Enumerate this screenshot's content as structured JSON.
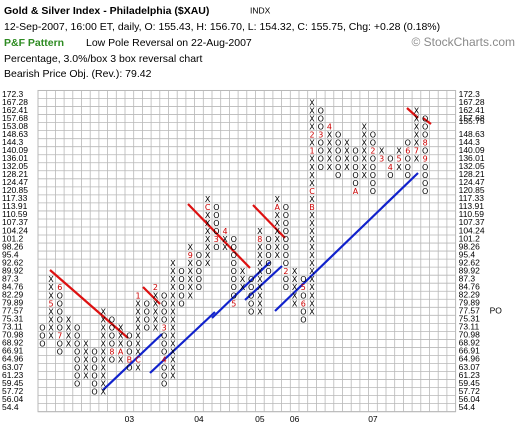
{
  "chart_data": {
    "type": "point-and-figure",
    "title": "Gold & Silver Index - Philadelphia ($XAU)",
    "exchange": "INDX",
    "quote_line": "12-Sep-2007, 16:00 ET, daily, O: 155.43, H: 156.70, L: 154.32, C: 155.75, Chg: +0.28 (0.18%)",
    "pattern_label": "P&F Pattern",
    "pattern_text": "Low Pole Reversal on 22-Aug-2007",
    "method_text": "Percentage, 3.0%/box 3 box reversal chart",
    "objective_text": "Bearish Price Obj. (Rev.): 79.42",
    "watermark": "© StockCharts.com",
    "last_price": 155.75,
    "price_objective": {
      "value": 77.57,
      "label": "PO"
    },
    "x_symbol": "X",
    "o_symbol": "O",
    "yticks": [
      172.3,
      167.28,
      162.41,
      157.68,
      153.08,
      148.63,
      144.3,
      140.09,
      136.01,
      132.05,
      128.21,
      124.47,
      120.85,
      117.33,
      113.91,
      110.59,
      107.37,
      104.24,
      101.2,
      98.26,
      95.4,
      92.62,
      89.92,
      87.3,
      84.76,
      82.29,
      79.89,
      77.57,
      75.31,
      73.11,
      70.98,
      68.92,
      66.91,
      64.96,
      63.07,
      61.23,
      59.45,
      57.72,
      56.04,
      54.4
    ],
    "ylim": [
      54.4,
      172.3
    ],
    "grid": true,
    "colors": {
      "box": "#000000",
      "marker": "#cc0000",
      "grid": "#b8b8b8",
      "highlight": "#cc0000"
    },
    "columns": [
      {
        "kind": "O",
        "high": 73.11,
        "low": 68.92
      },
      {
        "kind": "X",
        "high": 87.3,
        "low": 70.98,
        "markers": [
          {
            "label": "5",
            "price": 79.89
          }
        ]
      },
      {
        "kind": "O",
        "high": 84.76,
        "low": 66.91,
        "markers": [
          {
            "label": "6",
            "price": 84.76
          },
          {
            "label": "7",
            "price": 70.98
          }
        ]
      },
      {
        "kind": "X",
        "high": 75.31,
        "low": 68.92
      },
      {
        "kind": "O",
        "high": 73.11,
        "low": 59.45
      },
      {
        "kind": "X",
        "high": 68.92,
        "low": 61.23
      },
      {
        "kind": "O",
        "high": 66.91,
        "low": 57.72
      },
      {
        "kind": "X",
        "high": 77.57,
        "low": 57.72
      },
      {
        "kind": "O",
        "high": 75.31,
        "low": 64.96,
        "markers": [
          {
            "label": "8",
            "price": 66.91
          }
        ]
      },
      {
        "kind": "X",
        "high": 73.11,
        "low": 64.96,
        "markers": [
          {
            "label": "A",
            "price": 66.91
          }
        ]
      },
      {
        "kind": "O",
        "high": 70.98,
        "low": 63.07,
        "axis_label": "03",
        "markers": [
          {
            "label": "B",
            "price": 64.96
          }
        ]
      },
      {
        "kind": "X",
        "high": 82.29,
        "low": 63.07,
        "markers": [
          {
            "label": "C",
            "price": 64.96
          },
          {
            "label": "1",
            "price": 82.29
          }
        ]
      },
      {
        "kind": "O",
        "high": 79.89,
        "low": 73.11
      },
      {
        "kind": "X",
        "high": 84.76,
        "low": 73.11,
        "markers": [
          {
            "label": "2",
            "price": 84.76
          }
        ]
      },
      {
        "kind": "O",
        "high": 82.29,
        "low": 59.45,
        "markers": [
          {
            "label": "3",
            "price": 73.11
          },
          {
            "label": "4",
            "price": 64.96
          }
        ]
      },
      {
        "kind": "X",
        "high": 92.62,
        "low": 61.23
      },
      {
        "kind": "O",
        "high": 89.92,
        "low": 79.89
      },
      {
        "kind": "X",
        "high": 98.26,
        "low": 82.29,
        "markers": [
          {
            "label": "9",
            "price": 95.4
          }
        ]
      },
      {
        "kind": "O",
        "high": 95.4,
        "low": 84.76,
        "axis_label": "04"
      },
      {
        "kind": "X",
        "high": 117.33,
        "low": 92.62,
        "markers": [
          {
            "label": "C",
            "price": 113.91
          }
        ]
      },
      {
        "kind": "O",
        "high": 113.91,
        "low": 98.26,
        "markers": [
          {
            "label": "3",
            "price": 101.2
          }
        ]
      },
      {
        "kind": "X",
        "high": 104.24,
        "low": 98.26,
        "markers": [
          {
            "label": "4",
            "price": 104.24
          }
        ]
      },
      {
        "kind": "O",
        "high": 101.2,
        "low": 79.89,
        "markers": [
          {
            "label": "5",
            "price": 79.89
          }
        ]
      },
      {
        "kind": "X",
        "high": 89.92,
        "low": 84.76
      },
      {
        "kind": "O",
        "high": 87.3,
        "low": 77.57
      },
      {
        "kind": "X",
        "high": 104.24,
        "low": 77.57,
        "axis_label": "05",
        "markers": [
          {
            "label": "8",
            "price": 101.2
          }
        ]
      },
      {
        "kind": "O",
        "high": 101.2,
        "low": 89.92
      },
      {
        "kind": "X",
        "high": 117.33,
        "low": 95.4,
        "markers": [
          {
            "label": "A",
            "price": 113.91
          }
        ]
      },
      {
        "kind": "O",
        "high": 113.91,
        "low": 84.76,
        "markers": [
          {
            "label": "2",
            "price": 89.92
          }
        ]
      },
      {
        "kind": "X",
        "high": 89.92,
        "low": 79.89,
        "axis_label": "06"
      },
      {
        "kind": "O",
        "high": 87.3,
        "low": 75.31,
        "markers": [
          {
            "label": "5",
            "price": 84.76
          },
          {
            "label": "6",
            "price": 79.89
          }
        ]
      },
      {
        "kind": "X",
        "high": 167.28,
        "low": 77.57,
        "markers": [
          {
            "label": "B",
            "price": 113.91
          },
          {
            "label": "C",
            "price": 120.85
          },
          {
            "label": "1",
            "price": 140.09
          },
          {
            "label": "2",
            "price": 148.63
          }
        ]
      },
      {
        "kind": "O",
        "high": 162.41,
        "low": 132.05,
        "markers": [
          {
            "label": "3",
            "price": 148.63
          }
        ]
      },
      {
        "kind": "X",
        "high": 153.08,
        "low": 132.05,
        "markers": [
          {
            "label": "4",
            "price": 153.08
          }
        ]
      },
      {
        "kind": "O",
        "high": 148.63,
        "low": 128.21
      },
      {
        "kind": "X",
        "high": 144.3,
        "low": 132.05
      },
      {
        "kind": "O",
        "high": 140.09,
        "low": 120.85,
        "markers": [
          {
            "label": "A",
            "price": 120.85
          }
        ]
      },
      {
        "kind": "X",
        "high": 153.08,
        "low": 128.21
      },
      {
        "kind": "O",
        "high": 148.63,
        "low": 120.85,
        "axis_label": "07",
        "markers": [
          {
            "label": "2",
            "price": 140.09
          }
        ]
      },
      {
        "kind": "X",
        "high": 140.09,
        "low": 136.01,
        "markers": [
          {
            "label": "3",
            "price": 136.01
          }
        ]
      },
      {
        "kind": "O",
        "high": 136.01,
        "low": 128.21,
        "markers": [
          {
            "label": "4",
            "price": 132.05
          }
        ]
      },
      {
        "kind": "X",
        "high": 140.09,
        "low": 132.05,
        "markers": [
          {
            "label": "5",
            "price": 136.01
          }
        ]
      },
      {
        "kind": "O",
        "high": 144.3,
        "low": 128.21,
        "markers": [
          {
            "label": "6",
            "price": 140.09
          }
        ]
      },
      {
        "kind": "X",
        "high": 162.41,
        "low": 136.01,
        "markers": [
          {
            "label": "7",
            "price": 140.09
          }
        ]
      },
      {
        "kind": "O",
        "high": 157.68,
        "low": 120.85,
        "markers": [
          {
            "label": "8",
            "price": 144.3
          },
          {
            "label": "9",
            "price": 136.01
          }
        ]
      }
    ]
  }
}
